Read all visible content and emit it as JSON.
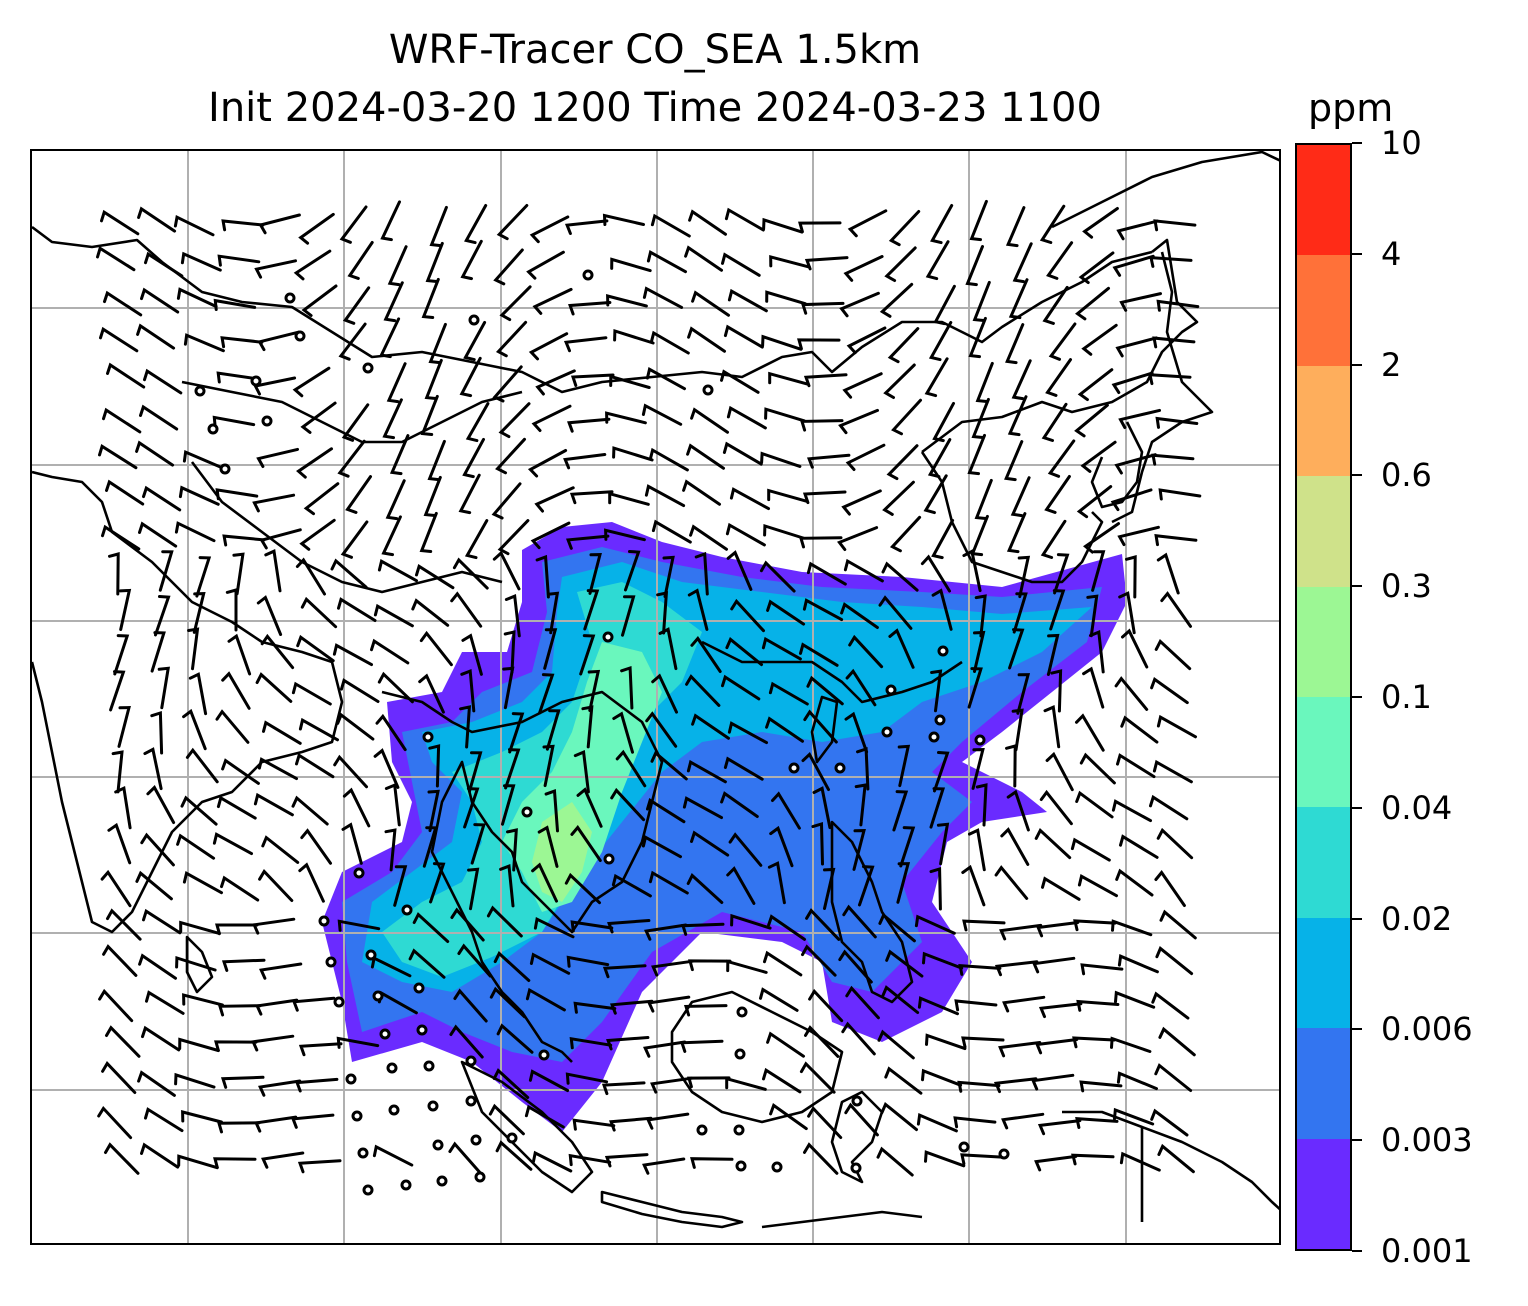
{
  "title": {
    "line1": "WRF-Tracer CO_SEA 1.5km",
    "line2": "Init 2024-03-20 1200 Time 2024-03-23 1100"
  },
  "colorbar": {
    "unit": "ppm",
    "levels": [
      "0.001",
      "0.003",
      "0.006",
      "0.02",
      "0.04",
      "0.1",
      "0.3",
      "0.6",
      "2",
      "4",
      "10"
    ],
    "colors": [
      "#6a2bff",
      "#3375f0",
      "#06b2e8",
      "#2edad3",
      "#6af7bd",
      "#9cf794",
      "#cfe28a",
      "#feae5c",
      "#ff7139",
      "#ff2b17"
    ]
  },
  "map": {
    "grid_color": "#b0b0b0",
    "coastline_color": "#000000"
  }
}
